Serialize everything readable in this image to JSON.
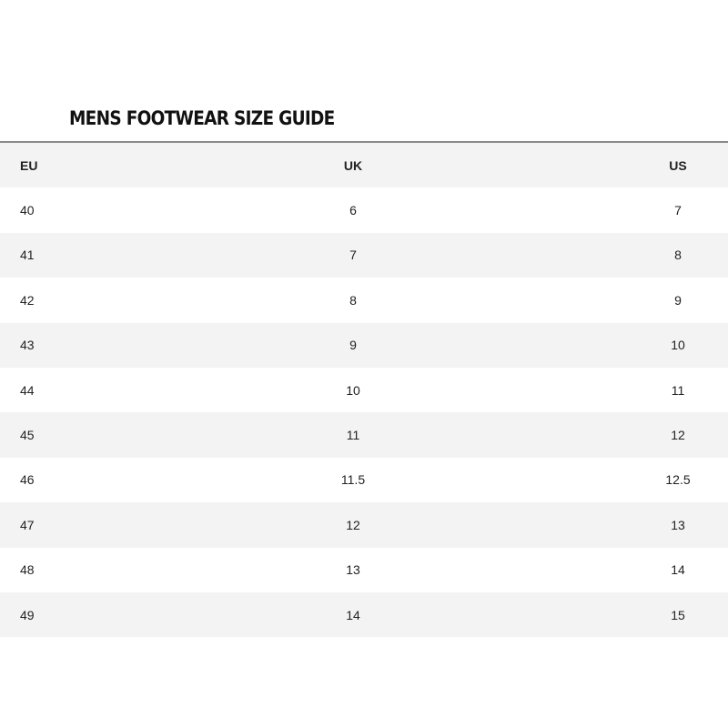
{
  "title": "MENS FOOTWEAR SIZE GUIDE",
  "headers": [
    "EU",
    "UK",
    "US"
  ],
  "rows": [
    [
      "40",
      "6",
      "7"
    ],
    [
      "41",
      "7",
      "8"
    ],
    [
      "42",
      "8",
      "9"
    ],
    [
      "43",
      "9",
      "10"
    ],
    [
      "44",
      "10",
      "11"
    ],
    [
      "45",
      "11",
      "12"
    ],
    [
      "46",
      "11.5",
      "12.5"
    ],
    [
      "47",
      "12",
      "13"
    ],
    [
      "48",
      "13",
      "14"
    ],
    [
      "49",
      "14",
      "15"
    ]
  ]
}
